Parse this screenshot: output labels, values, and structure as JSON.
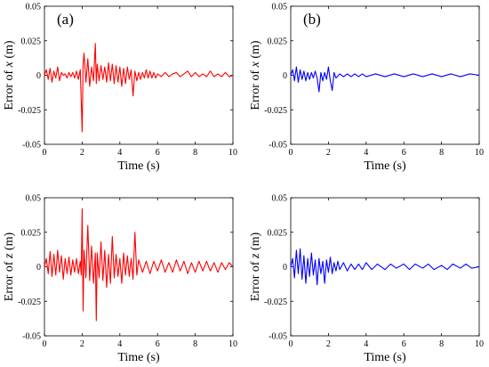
{
  "chart_data": [
    {
      "type": "line",
      "panel_label": "(a)",
      "ylabel_prefix": "Error of ",
      "ylabel_var": "x",
      "ylabel_unit": " (m)",
      "xlabel": "Time (s)",
      "xlim": [
        0,
        10
      ],
      "ylim": [
        -0.05,
        0.05
      ],
      "xticks": [
        "0",
        "2",
        "4",
        "6",
        "8",
        "10"
      ],
      "yticks": [
        "0.05",
        "0.025",
        "0",
        "-0.025",
        "-0.05"
      ],
      "color": "#ff0000",
      "series": [
        {
          "x": [
            0,
            0.1,
            0.2,
            0.3,
            0.4,
            0.5,
            0.6,
            0.7,
            0.8,
            0.9,
            1.0,
            1.1,
            1.2,
            1.3,
            1.4,
            1.5,
            1.6,
            1.7,
            1.8,
            1.9,
            2.0,
            2.05,
            2.1,
            2.2,
            2.3,
            2.4,
            2.5,
            2.6,
            2.7,
            2.75,
            2.8,
            2.9,
            3.0,
            3.1,
            3.2,
            3.3,
            3.4,
            3.5,
            3.6,
            3.7,
            3.8,
            3.9,
            4.0,
            4.1,
            4.2,
            4.3,
            4.4,
            4.5,
            4.6,
            4.7,
            4.8,
            4.9,
            5.0,
            5.1,
            5.2,
            5.3,
            5.4,
            5.5,
            5.6,
            5.7,
            5.8,
            5.9,
            6.0,
            6.2,
            6.4,
            6.6,
            6.8,
            7.0,
            7.2,
            7.4,
            7.6,
            7.8,
            8.0,
            8.2,
            8.4,
            8.6,
            8.8,
            9.0,
            9.2,
            9.4,
            9.6,
            9.8,
            10.0
          ],
          "values": [
            0,
            0.004,
            -0.003,
            0.005,
            -0.005,
            0.003,
            -0.002,
            0.006,
            -0.004,
            0.002,
            0,
            0.001,
            -0.002,
            0.002,
            -0.001,
            0.002,
            -0.002,
            0.003,
            -0.003,
            0.004,
            -0.041,
            0.008,
            0.016,
            -0.005,
            0.012,
            -0.008,
            0.006,
            -0.004,
            0.023,
            -0.006,
            0.008,
            -0.004,
            0.007,
            -0.003,
            0.006,
            -0.005,
            0.009,
            -0.004,
            0.008,
            -0.006,
            0.007,
            -0.005,
            0.006,
            -0.008,
            0.005,
            -0.006,
            0.006,
            -0.003,
            0.004,
            -0.015,
            0.003,
            -0.004,
            0.002,
            -0.003,
            0.002,
            -0.002,
            0.004,
            -0.002,
            0.003,
            -0.002,
            0.002,
            -0.002,
            0.001,
            -0.001,
            0.002,
            -0.001,
            0.001,
            0.002,
            -0.001,
            0.001,
            0.003,
            -0.001,
            0.002,
            -0.001,
            0.001,
            -0.001,
            0.003,
            -0.001,
            0.001,
            -0.001,
            0.002,
            -0.001,
            0
          ]
        }
      ]
    },
    {
      "type": "line",
      "panel_label": "(b)",
      "ylabel_prefix": "Error of ",
      "ylabel_var": "x",
      "ylabel_unit": " (m)",
      "xlabel": "Time (s)",
      "xlim": [
        0,
        10
      ],
      "ylim": [
        -0.05,
        0.05
      ],
      "xticks": [
        "0",
        "2",
        "4",
        "6",
        "8",
        "10"
      ],
      "yticks": [
        "0.05",
        "0.025",
        "0",
        "-0.025",
        "-0.05"
      ],
      "color": "#0000ff",
      "series": [
        {
          "x": [
            0,
            0.1,
            0.2,
            0.3,
            0.4,
            0.5,
            0.6,
            0.7,
            0.8,
            0.9,
            1.0,
            1.1,
            1.2,
            1.3,
            1.4,
            1.5,
            1.6,
            1.7,
            1.8,
            1.9,
            2.0,
            2.1,
            2.2,
            2.3,
            2.4,
            2.6,
            2.8,
            3.0,
            3.2,
            3.4,
            3.6,
            3.8,
            4.0,
            4.5,
            5.0,
            5.5,
            6.0,
            6.5,
            7.0,
            7.5,
            8.0,
            8.5,
            9.0,
            9.5,
            10.0
          ],
          "values": [
            0,
            0.004,
            -0.004,
            0.006,
            -0.005,
            0.004,
            -0.003,
            0.003,
            -0.004,
            0.002,
            -0.003,
            0.002,
            -0.002,
            0.003,
            -0.002,
            -0.012,
            0.002,
            -0.004,
            0.002,
            -0.003,
            0.006,
            -0.004,
            -0.011,
            0.002,
            -0.002,
            0.001,
            -0.001,
            0.001,
            -0.001,
            0.001,
            -0.001,
            0.001,
            -0.001,
            0.001,
            -0.001,
            0.001,
            -0.001,
            0.001,
            -0.001,
            0.001,
            -0.001,
            0.001,
            -0.001,
            0.001,
            0
          ]
        }
      ]
    },
    {
      "type": "line",
      "panel_label": "",
      "ylabel_prefix": "Error of ",
      "ylabel_var": "z",
      "ylabel_unit": " (m)",
      "xlabel": "Time (s)",
      "xlim": [
        0,
        10
      ],
      "ylim": [
        -0.05,
        0.05
      ],
      "xticks": [
        "0",
        "2",
        "4",
        "6",
        "8",
        "10"
      ],
      "yticks": [
        "0.05",
        "0.025",
        "0",
        "-0.025",
        "-0.05"
      ],
      "color": "#ff0000",
      "series": [
        {
          "x": [
            0,
            0.1,
            0.2,
            0.3,
            0.4,
            0.5,
            0.6,
            0.7,
            0.8,
            0.9,
            1.0,
            1.1,
            1.2,
            1.3,
            1.4,
            1.5,
            1.6,
            1.7,
            1.8,
            1.9,
            1.95,
            2.0,
            2.05,
            2.1,
            2.2,
            2.3,
            2.4,
            2.5,
            2.6,
            2.7,
            2.75,
            2.8,
            2.9,
            3.0,
            3.1,
            3.2,
            3.3,
            3.4,
            3.5,
            3.6,
            3.7,
            3.8,
            3.9,
            4.0,
            4.1,
            4.2,
            4.3,
            4.4,
            4.5,
            4.6,
            4.7,
            4.8,
            4.9,
            5.0,
            5.2,
            5.4,
            5.6,
            5.8,
            6.0,
            6.2,
            6.4,
            6.6,
            6.8,
            7.0,
            7.2,
            7.4,
            7.6,
            7.8,
            8.0,
            8.2,
            8.4,
            8.6,
            8.8,
            9.0,
            9.2,
            9.4,
            9.6,
            9.8,
            10.0
          ],
          "values": [
            0,
            0.006,
            -0.005,
            0.011,
            -0.007,
            0.009,
            -0.006,
            0.012,
            -0.004,
            0.008,
            -0.009,
            0.006,
            -0.005,
            0.007,
            -0.006,
            0.005,
            -0.004,
            0.006,
            -0.005,
            0.004,
            -0.006,
            0.042,
            -0.032,
            0.012,
            -0.008,
            0.03,
            -0.01,
            0.015,
            -0.012,
            0.01,
            -0.039,
            0.01,
            -0.008,
            0.018,
            -0.01,
            0.012,
            -0.015,
            0.009,
            -0.012,
            0.022,
            -0.008,
            0.009,
            -0.007,
            0.006,
            -0.012,
            0.01,
            -0.006,
            0.008,
            -0.007,
            0.006,
            -0.009,
            0.025,
            -0.006,
            0.005,
            -0.004,
            0.004,
            -0.005,
            0.004,
            -0.003,
            0.005,
            -0.004,
            0.003,
            -0.004,
            0.005,
            -0.003,
            0.004,
            -0.005,
            0.003,
            -0.004,
            0.004,
            -0.003,
            0.004,
            -0.003,
            0.003,
            -0.004,
            0.003,
            -0.002,
            0.003,
            0
          ]
        }
      ]
    },
    {
      "type": "line",
      "panel_label": "",
      "ylabel_prefix": "Error of ",
      "ylabel_var": "z",
      "ylabel_unit": " (m)",
      "xlabel": "Time (s)",
      "xlim": [
        0,
        10
      ],
      "ylim": [
        -0.05,
        0.05
      ],
      "xticks": [
        "0",
        "2",
        "4",
        "6",
        "8",
        "10"
      ],
      "yticks": [
        "0.05",
        "0.025",
        "0",
        "-0.025",
        "-0.05"
      ],
      "color": "#0000ff",
      "series": [
        {
          "x": [
            0,
            0.1,
            0.2,
            0.3,
            0.4,
            0.5,
            0.6,
            0.7,
            0.8,
            0.9,
            1.0,
            1.1,
            1.2,
            1.3,
            1.4,
            1.5,
            1.6,
            1.7,
            1.8,
            1.9,
            2.0,
            2.1,
            2.2,
            2.3,
            2.4,
            2.5,
            2.6,
            2.8,
            3.0,
            3.2,
            3.4,
            3.6,
            3.8,
            4.0,
            4.3,
            4.6,
            5.0,
            5.3,
            5.6,
            6.0,
            6.3,
            6.6,
            7.0,
            7.3,
            7.6,
            8.0,
            8.3,
            8.6,
            9.0,
            9.3,
            9.6,
            10.0
          ],
          "values": [
            0,
            0.006,
            -0.008,
            0.012,
            -0.005,
            0.013,
            -0.009,
            0.008,
            -0.012,
            0.006,
            -0.007,
            0.01,
            -0.006,
            0.005,
            -0.013,
            0.006,
            -0.005,
            0.004,
            -0.012,
            0.005,
            -0.004,
            0.007,
            -0.005,
            0.003,
            -0.003,
            0.004,
            -0.002,
            0.003,
            -0.003,
            0.002,
            -0.002,
            0.002,
            -0.002,
            0.003,
            -0.002,
            0.002,
            -0.002,
            0.002,
            -0.001,
            0.002,
            -0.002,
            0.002,
            -0.001,
            0.002,
            -0.002,
            0.001,
            -0.002,
            0.002,
            -0.001,
            0.002,
            -0.001,
            0
          ]
        }
      ]
    }
  ]
}
